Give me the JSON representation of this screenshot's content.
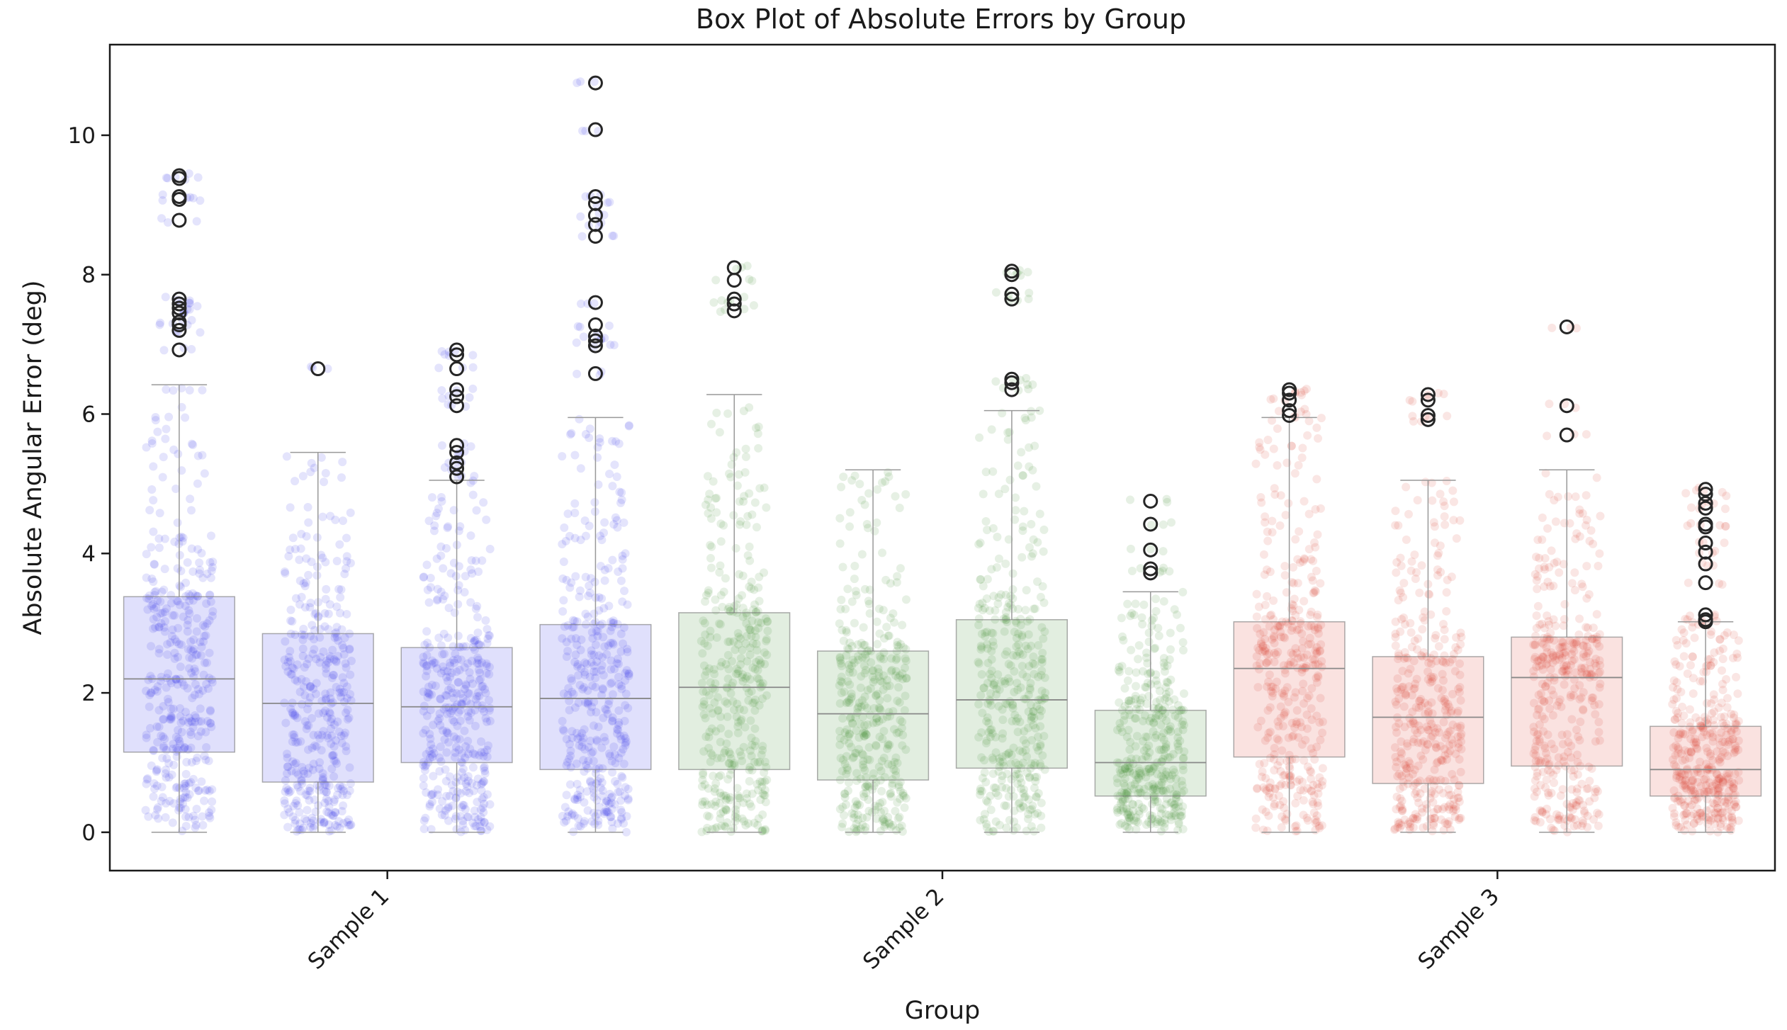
{
  "chart_data": {
    "type": "box",
    "title": "Box Plot of Absolute Errors by Group",
    "xlabel": "Group",
    "ylabel": "Absolute Angular Error (deg)",
    "ylim": [
      -0.55,
      11.3
    ],
    "yticks": [
      0,
      2,
      4,
      6,
      8,
      10
    ],
    "grid": false,
    "legend": "none",
    "categories": [
      "Sample 1",
      "Sample 2",
      "Sample 3"
    ],
    "group_colors": {
      "Sample 1": "#2f2fe8",
      "Sample 2": "#3e8a2f",
      "Sample 3": "#dc3a2c"
    },
    "boxes": [
      {
        "group": "Sample 1",
        "q1": 1.15,
        "median": 2.2,
        "q3": 3.38,
        "whisker_low": 0.0,
        "whisker_high": 6.42,
        "outliers": [
          6.92,
          7.2,
          7.28,
          7.32,
          7.45,
          7.52,
          7.58,
          7.65,
          8.78,
          9.08,
          9.12,
          9.38,
          9.42
        ]
      },
      {
        "group": "Sample 1",
        "q1": 0.72,
        "median": 1.85,
        "q3": 2.85,
        "whisker_low": 0.0,
        "whisker_high": 5.45,
        "outliers": [
          6.65
        ]
      },
      {
        "group": "Sample 1",
        "q1": 1.0,
        "median": 1.8,
        "q3": 2.65,
        "whisker_low": 0.0,
        "whisker_high": 5.05,
        "outliers": [
          5.1,
          5.22,
          5.3,
          5.45,
          5.55,
          6.12,
          6.25,
          6.35,
          6.65,
          6.85,
          6.92
        ]
      },
      {
        "group": "Sample 1",
        "q1": 0.9,
        "median": 1.92,
        "q3": 2.98,
        "whisker_low": 0.0,
        "whisker_high": 5.95,
        "outliers": [
          6.58,
          6.98,
          7.05,
          7.12,
          7.28,
          7.6,
          8.55,
          8.72,
          8.85,
          9.02,
          9.12,
          10.08,
          10.75
        ]
      },
      {
        "group": "Sample 2",
        "q1": 0.9,
        "median": 2.08,
        "q3": 3.15,
        "whisker_low": 0.0,
        "whisker_high": 6.28,
        "outliers": [
          7.48,
          7.58,
          7.65,
          7.92,
          8.1
        ]
      },
      {
        "group": "Sample 2",
        "q1": 0.75,
        "median": 1.7,
        "q3": 2.6,
        "whisker_low": 0.0,
        "whisker_high": 5.2,
        "outliers": []
      },
      {
        "group": "Sample 2",
        "q1": 0.92,
        "median": 1.9,
        "q3": 3.05,
        "whisker_low": 0.0,
        "whisker_high": 6.05,
        "outliers": [
          6.35,
          6.45,
          6.5,
          7.65,
          7.72,
          8.0,
          8.05
        ]
      },
      {
        "group": "Sample 2",
        "q1": 0.52,
        "median": 1.0,
        "q3": 1.75,
        "whisker_low": 0.0,
        "whisker_high": 3.45,
        "outliers": [
          3.72,
          3.78,
          4.05,
          4.42,
          4.75
        ]
      },
      {
        "group": "Sample 3",
        "q1": 1.08,
        "median": 2.35,
        "q3": 3.02,
        "whisker_low": 0.0,
        "whisker_high": 5.95,
        "outliers": [
          5.98,
          6.05,
          6.2,
          6.3,
          6.35
        ]
      },
      {
        "group": "Sample 3",
        "q1": 0.7,
        "median": 1.65,
        "q3": 2.52,
        "whisker_low": 0.0,
        "whisker_high": 5.05,
        "outliers": [
          5.92,
          5.98,
          6.2,
          6.28
        ]
      },
      {
        "group": "Sample 3",
        "q1": 0.95,
        "median": 2.22,
        "q3": 2.8,
        "whisker_low": 0.0,
        "whisker_high": 5.2,
        "outliers": [
          5.7,
          6.12,
          7.25
        ]
      },
      {
        "group": "Sample 3",
        "q1": 0.52,
        "median": 0.9,
        "q3": 1.52,
        "whisker_low": 0.0,
        "whisker_high": 3.02,
        "outliers": [
          3.02,
          3.05,
          3.12,
          3.58,
          3.85,
          4.02,
          4.15,
          4.38,
          4.42,
          4.65,
          4.72,
          4.85,
          4.92
        ]
      }
    ]
  }
}
